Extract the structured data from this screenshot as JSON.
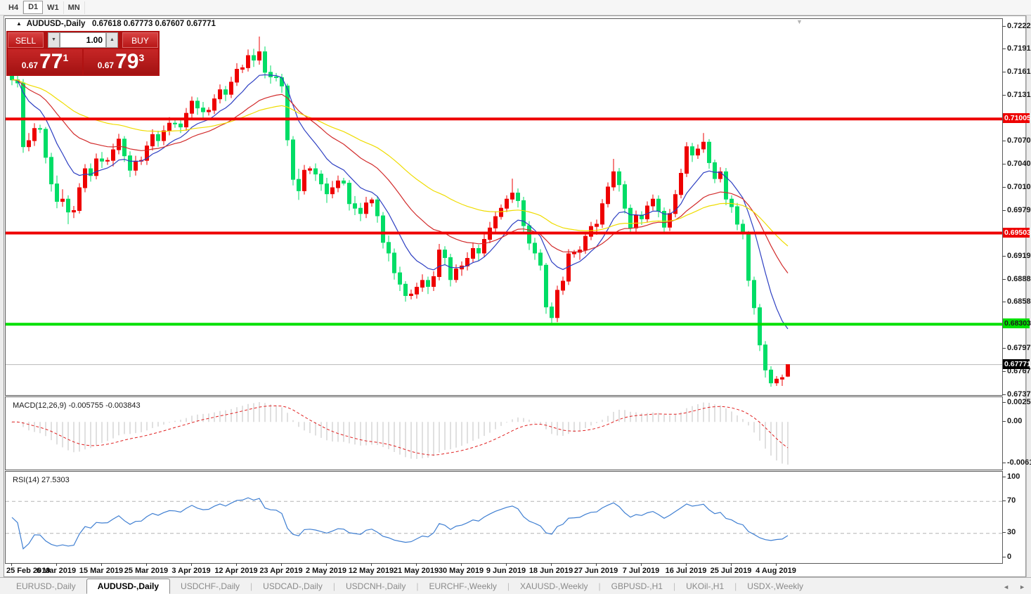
{
  "toolbar": {
    "timeframes": [
      "H4",
      "D1",
      "W1",
      "MN"
    ],
    "active": "D1"
  },
  "chart": {
    "title": {
      "collapse_icon": "▲",
      "symbol": "AUDUSD-,Daily",
      "ohlc": "0.67618 0.67773 0.67607 0.67771"
    },
    "shift_marker_icon": "▼",
    "trade_panel": {
      "sell_label": "SELL",
      "buy_label": "BUY",
      "volume": "1.00",
      "spin_down_icon": "▼",
      "spin_up_icon": "▲",
      "sell_price": {
        "prefix": "0.67",
        "big": "77",
        "sup": "1"
      },
      "buy_price": {
        "prefix": "0.67",
        "big": "79",
        "sup": "3"
      }
    }
  },
  "chart_data": {
    "type": "candlestick",
    "symbol": "AUDUSD-",
    "timeframe": "Daily",
    "candle_colors": {
      "bull": "#ee0000",
      "bear": "#00dd66"
    },
    "price_axis": {
      "top_price": 0.7222,
      "bottom_price": 0.6737,
      "ticks": [
        "0.72220",
        "0.71915",
        "0.71610",
        "0.71310",
        "0.70705",
        "0.70400",
        "0.70100",
        "0.69795",
        "0.69190",
        "0.68885",
        "0.68585",
        "0.67975",
        "0.67675",
        "0.67370"
      ]
    },
    "hlines": [
      {
        "price": 0.71005,
        "label": "0.71005",
        "color": "#ee0000",
        "width": 4,
        "label_bg": "#ee0000",
        "label_fg": "#ffffff"
      },
      {
        "price": 0.69503,
        "label": "0.69503",
        "color": "#ee0000",
        "width": 4,
        "label_bg": "#ee0000",
        "label_fg": "#ffffff"
      },
      {
        "price": 0.68303,
        "label": "0.68303",
        "color": "#00e000",
        "width": 4,
        "label_bg": "#00e000",
        "label_fg": "#1a1a1a"
      }
    ],
    "current_price": {
      "price": 0.67771,
      "label": "0.67771",
      "line_color": "#b8b8b8",
      "label_bg": "#000000",
      "label_fg": "#ffffff"
    },
    "moving_averages": [
      {
        "period": 10,
        "color": "#2d3fc2"
      },
      {
        "period": 25,
        "color": "#d22c2c"
      },
      {
        "period": 50,
        "color": "#efdc00"
      }
    ],
    "x_labels": [
      "25 Feb 2019",
      "6 Mar 2019",
      "15 Mar 2019",
      "25 Mar 2019",
      "3 Apr 2019",
      "12 Apr 2019",
      "23 Apr 2019",
      "2 May 2019",
      "12 May 2019",
      "21 May 2019",
      "30 May 2019",
      "9 Jun 2019",
      "18 Jun 2019",
      "27 Jun 2019",
      "7 Jul 2019",
      "16 Jul 2019",
      "25 Jul 2019",
      "4 Aug 2019"
    ],
    "bars_per_label": 8,
    "indicators": [
      {
        "name": "MACD",
        "label": "MACD(12,26,9) -0.005755 -0.003843",
        "params": [
          12,
          26,
          9
        ],
        "axis_labels": [
          "0.002566",
          "0.00",
          "-0.006151"
        ],
        "histogram_color": "#c2c2c2",
        "signal_color": "#e02020",
        "last_main": -0.005755,
        "last_signal": -0.003843
      },
      {
        "name": "RSI",
        "label": "RSI(14) 27.5303",
        "period": 14,
        "axis_labels": [
          "100",
          "70",
          "30",
          "0"
        ],
        "levels": [
          70,
          30
        ],
        "color": "#3f7fd2",
        "level_color": "#b4b4b4",
        "last_value": 27.5303
      }
    ],
    "candles": [
      [
        0.716,
        0.717,
        0.7145,
        0.7152
      ],
      [
        0.7152,
        0.7164,
        0.7142,
        0.7148
      ],
      [
        0.7148,
        0.7153,
        0.7056,
        0.7064
      ],
      [
        0.7064,
        0.7082,
        0.7058,
        0.7072
      ],
      [
        0.7072,
        0.7095,
        0.7065,
        0.7088
      ],
      [
        0.7088,
        0.7093,
        0.7082,
        0.7087
      ],
      [
        0.7087,
        0.709,
        0.7042,
        0.705
      ],
      [
        0.705,
        0.7056,
        0.7005,
        0.7015
      ],
      [
        0.7015,
        0.7026,
        0.6983,
        0.6992
      ],
      [
        0.6992,
        0.7008,
        0.6985,
        0.6995
      ],
      [
        0.6995,
        0.7,
        0.6962,
        0.6978
      ],
      [
        0.6978,
        0.6986,
        0.697,
        0.698
      ],
      [
        0.698,
        0.7016,
        0.6976,
        0.701
      ],
      [
        0.701,
        0.7041,
        0.7004,
        0.7035
      ],
      [
        0.7035,
        0.7042,
        0.7018,
        0.7026
      ],
      [
        0.7026,
        0.7055,
        0.7021,
        0.7048
      ],
      [
        0.7048,
        0.7057,
        0.7036,
        0.7045
      ],
      [
        0.7045,
        0.705,
        0.704,
        0.7046
      ],
      [
        0.7046,
        0.7068,
        0.7038,
        0.706
      ],
      [
        0.706,
        0.7081,
        0.7054,
        0.7074
      ],
      [
        0.7074,
        0.7078,
        0.7044,
        0.7052
      ],
      [
        0.7052,
        0.7058,
        0.7024,
        0.7033
      ],
      [
        0.7033,
        0.7052,
        0.7026,
        0.7045
      ],
      [
        0.7045,
        0.7051,
        0.704,
        0.7046
      ],
      [
        0.7046,
        0.7071,
        0.704,
        0.7065
      ],
      [
        0.7065,
        0.7087,
        0.7059,
        0.708
      ],
      [
        0.708,
        0.7085,
        0.7064,
        0.7072
      ],
      [
        0.7072,
        0.7092,
        0.7066,
        0.7085
      ],
      [
        0.7085,
        0.7103,
        0.7079,
        0.7095
      ],
      [
        0.7095,
        0.7099,
        0.7089,
        0.7094
      ],
      [
        0.7094,
        0.7101,
        0.7082,
        0.709
      ],
      [
        0.709,
        0.7115,
        0.7085,
        0.7108
      ],
      [
        0.7108,
        0.713,
        0.7102,
        0.7124
      ],
      [
        0.7124,
        0.7129,
        0.7106,
        0.7115
      ],
      [
        0.7115,
        0.7123,
        0.7101,
        0.711
      ],
      [
        0.711,
        0.7116,
        0.7105,
        0.7112
      ],
      [
        0.7112,
        0.7133,
        0.7107,
        0.7127
      ],
      [
        0.7127,
        0.7146,
        0.7121,
        0.7139
      ],
      [
        0.7139,
        0.7144,
        0.7124,
        0.7133
      ],
      [
        0.7133,
        0.7156,
        0.7128,
        0.7149
      ],
      [
        0.7149,
        0.7174,
        0.7144,
        0.7166
      ],
      [
        0.7166,
        0.7172,
        0.7161,
        0.7168
      ],
      [
        0.7168,
        0.7192,
        0.7163,
        0.7184
      ],
      [
        0.7184,
        0.7193,
        0.7169,
        0.7178
      ],
      [
        0.7178,
        0.7209,
        0.7172,
        0.7189
      ],
      [
        0.7189,
        0.7196,
        0.7154,
        0.7162
      ],
      [
        0.7162,
        0.7171,
        0.7147,
        0.7156
      ],
      [
        0.7156,
        0.7161,
        0.715,
        0.7155
      ],
      [
        0.7155,
        0.716,
        0.7135,
        0.7144
      ],
      [
        0.7144,
        0.7147,
        0.7065,
        0.7073
      ],
      [
        0.7073,
        0.7078,
        0.7013,
        0.7021
      ],
      [
        0.7021,
        0.7035,
        0.6994,
        0.7006
      ],
      [
        0.7006,
        0.704,
        0.7001,
        0.7033
      ],
      [
        0.7033,
        0.7038,
        0.7028,
        0.7035
      ],
      [
        0.7035,
        0.7042,
        0.7019,
        0.7028
      ],
      [
        0.7028,
        0.7033,
        0.7006,
        0.7015
      ],
      [
        0.7015,
        0.7023,
        0.699,
        0.7002
      ],
      [
        0.7002,
        0.7019,
        0.6996,
        0.701
      ],
      [
        0.701,
        0.7026,
        0.7004,
        0.7019
      ],
      [
        0.7019,
        0.7023,
        0.7013,
        0.7016
      ],
      [
        0.7016,
        0.702,
        0.698,
        0.6989
      ],
      [
        0.6989,
        0.6999,
        0.6974,
        0.6983
      ],
      [
        0.6983,
        0.699,
        0.6966,
        0.6976
      ],
      [
        0.6976,
        0.6998,
        0.697,
        0.699
      ],
      [
        0.699,
        0.6997,
        0.6985,
        0.6994
      ],
      [
        0.6994,
        0.6999,
        0.6964,
        0.6973
      ],
      [
        0.6973,
        0.6978,
        0.693,
        0.6938
      ],
      [
        0.6938,
        0.6947,
        0.6913,
        0.6924
      ],
      [
        0.6924,
        0.693,
        0.6889,
        0.6898
      ],
      [
        0.6898,
        0.6906,
        0.6874,
        0.6883
      ],
      [
        0.6883,
        0.6887,
        0.686,
        0.6868
      ],
      [
        0.6868,
        0.6876,
        0.6863,
        0.687
      ],
      [
        0.687,
        0.6885,
        0.6864,
        0.6879
      ],
      [
        0.6879,
        0.6896,
        0.6873,
        0.6888
      ],
      [
        0.6888,
        0.6893,
        0.687,
        0.688
      ],
      [
        0.688,
        0.69,
        0.6874,
        0.6893
      ],
      [
        0.6893,
        0.6936,
        0.6888,
        0.6928
      ],
      [
        0.6928,
        0.6933,
        0.6908,
        0.6918
      ],
      [
        0.6918,
        0.6923,
        0.688,
        0.6889
      ],
      [
        0.6889,
        0.6909,
        0.6885,
        0.6903
      ],
      [
        0.6903,
        0.6913,
        0.6894,
        0.6907
      ],
      [
        0.6907,
        0.6925,
        0.6901,
        0.6917
      ],
      [
        0.6917,
        0.6938,
        0.6912,
        0.693
      ],
      [
        0.693,
        0.6935,
        0.6914,
        0.6924
      ],
      [
        0.6924,
        0.6949,
        0.6919,
        0.6942
      ],
      [
        0.6942,
        0.6965,
        0.6937,
        0.6957
      ],
      [
        0.6957,
        0.6979,
        0.6952,
        0.6972
      ],
      [
        0.6972,
        0.6988,
        0.6968,
        0.6983
      ],
      [
        0.6983,
        0.7,
        0.6978,
        0.6995
      ],
      [
        0.6995,
        0.7022,
        0.699,
        0.7003
      ],
      [
        0.7003,
        0.7009,
        0.6984,
        0.6993
      ],
      [
        0.6993,
        0.6998,
        0.6951,
        0.696
      ],
      [
        0.696,
        0.6966,
        0.6928,
        0.6937
      ],
      [
        0.6937,
        0.6944,
        0.6915,
        0.6924
      ],
      [
        0.6924,
        0.6929,
        0.6901,
        0.6908
      ],
      [
        0.6908,
        0.6911,
        0.6844,
        0.6853
      ],
      [
        0.6853,
        0.6859,
        0.6832,
        0.6839
      ],
      [
        0.6839,
        0.6881,
        0.6833,
        0.6875
      ],
      [
        0.6875,
        0.6893,
        0.6869,
        0.6887
      ],
      [
        0.6887,
        0.6929,
        0.6882,
        0.6923
      ],
      [
        0.6923,
        0.6928,
        0.6918,
        0.6925
      ],
      [
        0.6925,
        0.6933,
        0.6915,
        0.6928
      ],
      [
        0.6928,
        0.6952,
        0.6923,
        0.6946
      ],
      [
        0.6946,
        0.6965,
        0.6941,
        0.6959
      ],
      [
        0.6959,
        0.6968,
        0.6948,
        0.6962
      ],
      [
        0.6962,
        0.6995,
        0.6957,
        0.6989
      ],
      [
        0.6989,
        0.7017,
        0.6984,
        0.7011
      ],
      [
        0.7011,
        0.7048,
        0.7006,
        0.7031
      ],
      [
        0.7031,
        0.7036,
        0.7005,
        0.7014
      ],
      [
        0.7014,
        0.7019,
        0.6976,
        0.6983
      ],
      [
        0.6983,
        0.6988,
        0.6951,
        0.6957
      ],
      [
        0.6957,
        0.698,
        0.6952,
        0.6974
      ],
      [
        0.6974,
        0.6979,
        0.6961,
        0.6969
      ],
      [
        0.6969,
        0.6992,
        0.6964,
        0.6986
      ],
      [
        0.6986,
        0.7001,
        0.698,
        0.6995
      ],
      [
        0.6995,
        0.7,
        0.6971,
        0.6979
      ],
      [
        0.6979,
        0.6984,
        0.695,
        0.6958
      ],
      [
        0.6958,
        0.6982,
        0.6953,
        0.6976
      ],
      [
        0.6976,
        0.7007,
        0.6971,
        0.7001
      ],
      [
        0.7001,
        0.7035,
        0.6996,
        0.7029
      ],
      [
        0.7029,
        0.707,
        0.7024,
        0.7064
      ],
      [
        0.7064,
        0.7069,
        0.7044,
        0.7053
      ],
      [
        0.7053,
        0.7067,
        0.7048,
        0.7061
      ],
      [
        0.7061,
        0.7082,
        0.7056,
        0.707
      ],
      [
        0.707,
        0.7074,
        0.7035,
        0.7043
      ],
      [
        0.7043,
        0.7047,
        0.7016,
        0.7022
      ],
      [
        0.7022,
        0.7037,
        0.7017,
        0.7031
      ],
      [
        0.7031,
        0.7036,
        0.6987,
        0.6995
      ],
      [
        0.6995,
        0.7,
        0.6977,
        0.6985
      ],
      [
        0.6985,
        0.699,
        0.6954,
        0.6962
      ],
      [
        0.6962,
        0.6968,
        0.6942,
        0.695
      ],
      [
        0.695,
        0.6953,
        0.688,
        0.6888
      ],
      [
        0.6888,
        0.6893,
        0.6843,
        0.6852
      ],
      [
        0.6852,
        0.6857,
        0.6795,
        0.6803
      ],
      [
        0.6803,
        0.6808,
        0.676,
        0.677
      ],
      [
        0.677,
        0.6775,
        0.6748,
        0.6753
      ],
      [
        0.6753,
        0.6762,
        0.6749,
        0.6758
      ],
      [
        0.6758,
        0.6764,
        0.6749,
        0.676
      ],
      [
        0.67618,
        0.67773,
        0.67607,
        0.67771
      ]
    ]
  },
  "tabs": {
    "items": [
      {
        "label": "EURUSD-,Daily",
        "active": false
      },
      {
        "label": "AUDUSD-,Daily",
        "active": true
      },
      {
        "label": "USDCHF-,Daily",
        "active": false
      },
      {
        "label": "USDCAD-,Daily",
        "active": false
      },
      {
        "label": "USDCNH-,Daily",
        "active": false
      },
      {
        "label": "EURCHF-,Weekly",
        "active": false
      },
      {
        "label": "XAUUSD-,Weekly",
        "active": false
      },
      {
        "label": "GBPUSD-,H1",
        "active": false
      },
      {
        "label": "UKOil-,H1",
        "active": false
      },
      {
        "label": "USDX-,Weekly",
        "active": false
      }
    ],
    "scroll_left_icon": "◄",
    "scroll_right_icon": "►"
  }
}
